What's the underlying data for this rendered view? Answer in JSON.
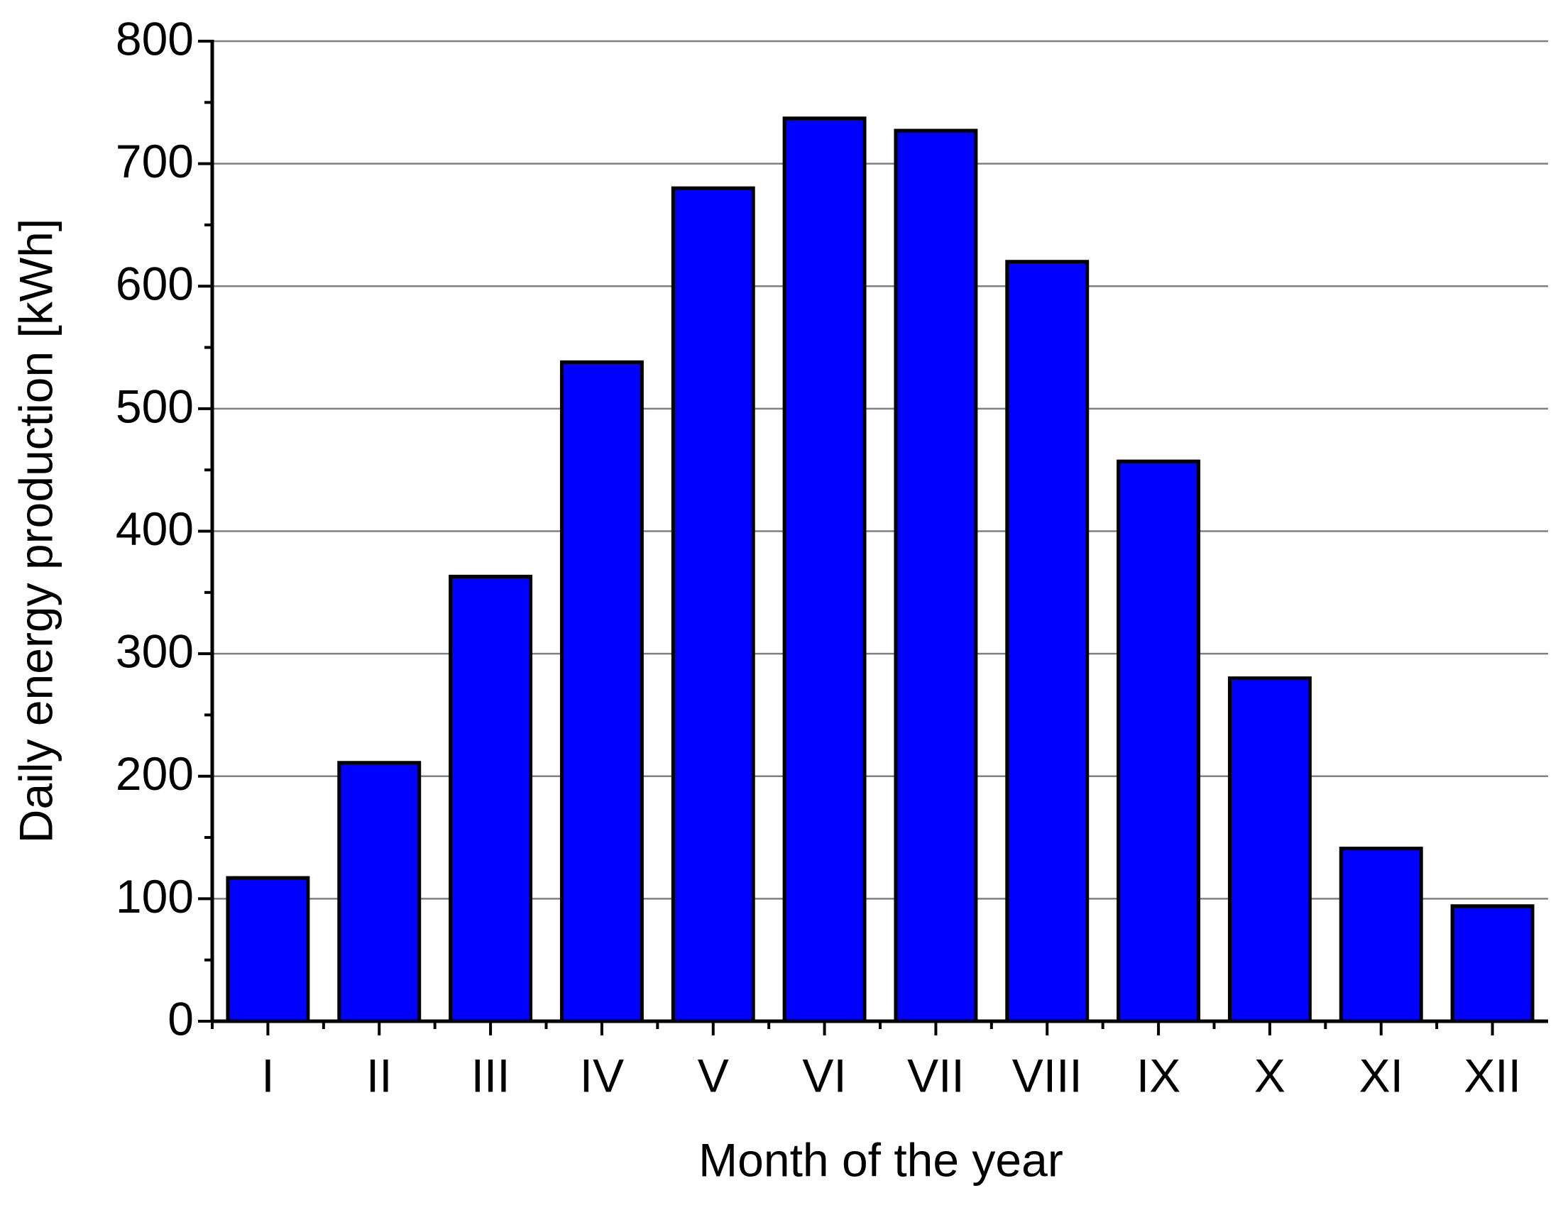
{
  "chart_data": {
    "type": "bar",
    "x_label": "Month of the year",
    "y_label": "Daily energy production [kWh]",
    "categories": [
      "I",
      "II",
      "III",
      "IV",
      "V",
      "VI",
      "VII",
      "VIII",
      "IX",
      "X",
      "XI",
      "XII"
    ],
    "values": [
      117,
      211,
      363,
      538,
      680,
      737,
      727,
      620,
      457,
      280,
      141,
      94
    ],
    "color": "#0000ff",
    "ylim": [
      0,
      800
    ],
    "yticks": [
      0,
      100,
      200,
      300,
      400,
      500,
      600,
      700,
      800
    ],
    "grid": true
  }
}
